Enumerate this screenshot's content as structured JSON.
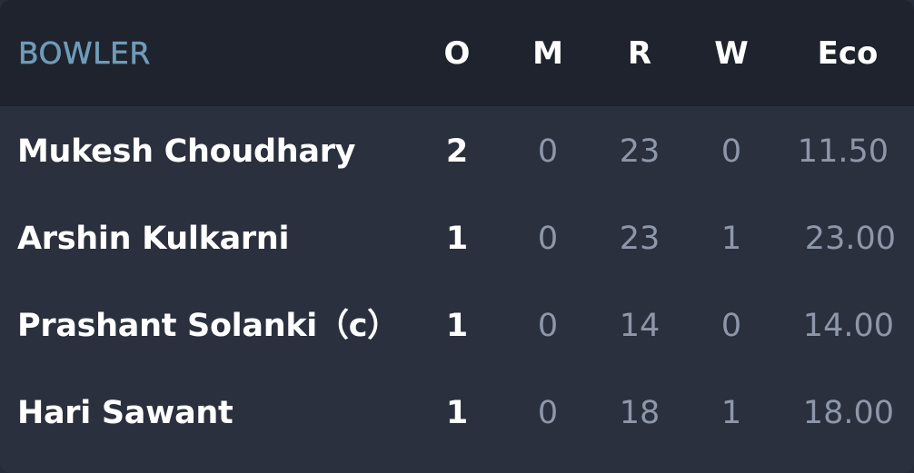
{
  "header": {
    "bowler": "BOWLER",
    "overs": "O",
    "maidens": "M",
    "runs": "R",
    "wickets": "W",
    "economy": "Eco"
  },
  "rows": [
    {
      "name": "Mukesh Choudhary",
      "o": "2",
      "m": "0",
      "r": "23",
      "w": "0",
      "eco": "11.50"
    },
    {
      "name": "Arshin Kulkarni",
      "o": "1",
      "m": "0",
      "r": "23",
      "w": "1",
      "eco": "23.00"
    },
    {
      "name": "Prashant Solanki（c）",
      "o": "1",
      "m": "0",
      "r": "14",
      "w": "0",
      "eco": "14.00"
    },
    {
      "name": "Hari Sawant",
      "o": "1",
      "m": "0",
      "r": "18",
      "w": "1",
      "eco": "18.00"
    }
  ],
  "colors": {
    "header_bg": "#1e232e",
    "body_bg": "#2a303d",
    "accent": "#6f9bb8",
    "muted": "#8e97aa"
  }
}
